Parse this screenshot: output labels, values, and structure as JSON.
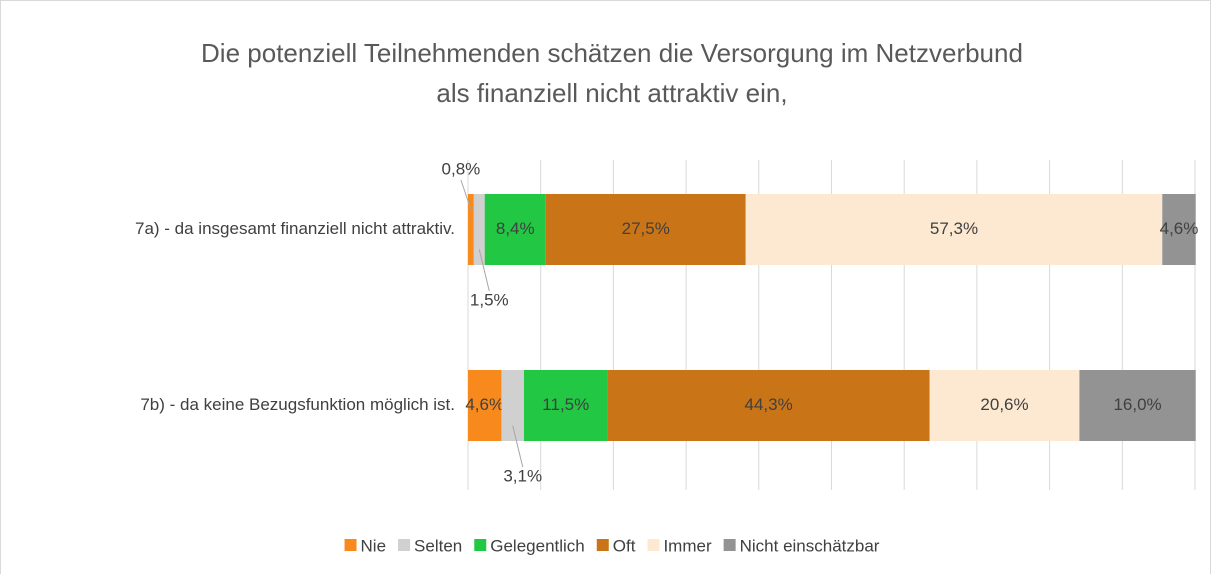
{
  "chart_data": {
    "type": "stacked_bar_horizontal",
    "title": [
      "Die potenziell Teilnehmenden schätzen die Versorgung im Netzverbund",
      "als finanziell nicht attraktiv ein,"
    ],
    "categories": [
      "7a) - da insgesamt finanziell nicht attraktiv.",
      "7b) - da keine Bezugsfunktion möglich ist."
    ],
    "series": [
      {
        "name": "Nie",
        "color": "#f7891d",
        "values": [
          0.8,
          4.6
        ],
        "value_labels": [
          "0,8%",
          "4,6%"
        ]
      },
      {
        "name": "Selten",
        "color": "#d0d0d0",
        "values": [
          1.5,
          3.1
        ],
        "value_labels": [
          "1,5%",
          "3,1%"
        ]
      },
      {
        "name": "Gelegentlich",
        "color": "#22c744",
        "values": [
          8.4,
          11.5
        ],
        "value_labels": [
          "8,4%",
          "11,5%"
        ]
      },
      {
        "name": "Oft",
        "color": "#c97517",
        "values": [
          27.5,
          44.3
        ],
        "value_labels": [
          "27,5%",
          "44,3%"
        ]
      },
      {
        "name": "Immer",
        "color": "#fde9d1",
        "values": [
          57.3,
          20.6
        ],
        "value_labels": [
          "57,3%",
          "20,6%"
        ]
      },
      {
        "name": "Nicht einschätzbar",
        "color": "#939393",
        "values": [
          4.6,
          16.0
        ],
        "value_labels": [
          "4,6%",
          "16,0%"
        ]
      }
    ],
    "xlim": [
      0,
      100
    ],
    "xticks": [
      0,
      10,
      20,
      30,
      40,
      50,
      60,
      70,
      80,
      90,
      100
    ],
    "xtick_labels": false,
    "grid": true,
    "legend": "bottom"
  }
}
